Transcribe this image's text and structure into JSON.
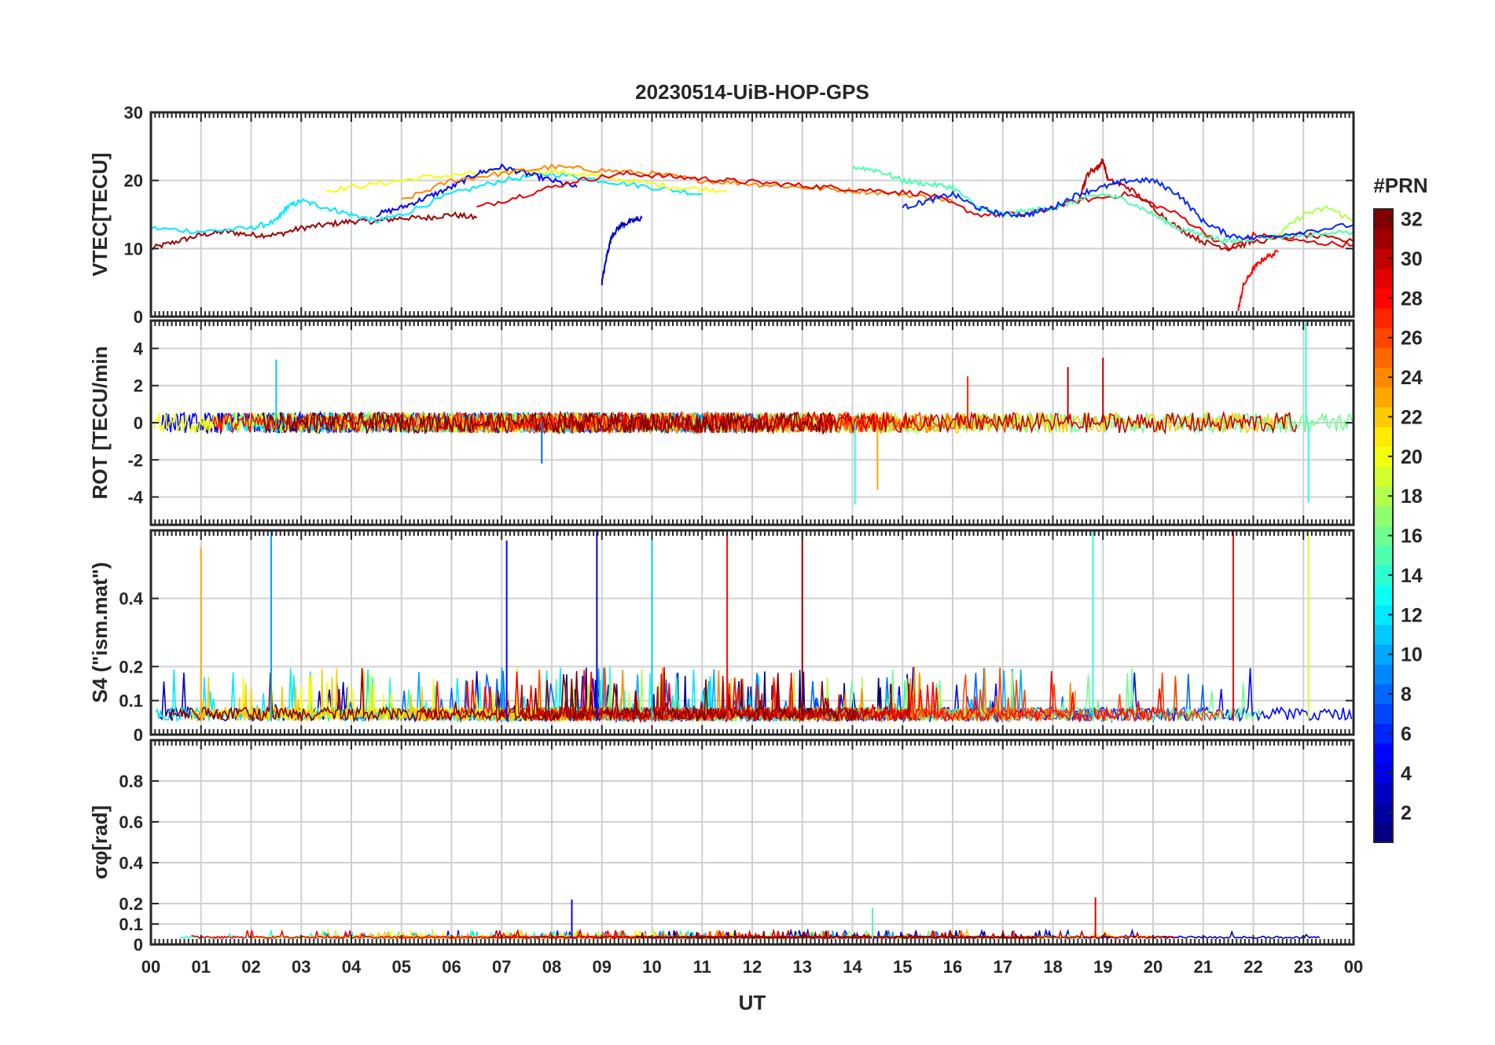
{
  "figure": {
    "title": "20230514-UiB-HOP-GPS",
    "xlabel": "UT",
    "x_ticks": [
      "00",
      "01",
      "02",
      "03",
      "04",
      "05",
      "06",
      "07",
      "08",
      "09",
      "10",
      "11",
      "12",
      "13",
      "14",
      "15",
      "16",
      "17",
      "18",
      "19",
      "20",
      "21",
      "22",
      "23",
      "00"
    ]
  },
  "colorbar": {
    "title": "#PRN",
    "range": [
      1,
      32
    ],
    "tick_labels": [
      "2",
      "4",
      "6",
      "8",
      "10",
      "12",
      "14",
      "16",
      "18",
      "20",
      "22",
      "24",
      "26",
      "28",
      "30",
      "32"
    ],
    "colormap": "jet"
  },
  "chart_data": [
    {
      "type": "line",
      "panel": "vtec",
      "ylabel": "VTEC[TECU]",
      "ylim": [
        0,
        30
      ],
      "y_ticks": [
        "0",
        "10",
        "20",
        "30"
      ],
      "xlim_hours": [
        0,
        24
      ],
      "grid": true,
      "series_description_from_image": "multiple PRN tracks, colored by PRN",
      "series": [
        {
          "prn": 31,
          "x": [
            0,
            0.5,
            1,
            1.5,
            2,
            2.5,
            3,
            3.5,
            4,
            4.5,
            5,
            5.5,
            6,
            6.5
          ],
          "y": [
            10,
            11,
            12,
            12.5,
            12,
            12,
            13,
            13.5,
            14,
            14,
            14.5,
            14.5,
            15,
            14.5
          ]
        },
        {
          "prn": 12,
          "x": [
            0,
            1,
            2,
            2.5,
            2.7,
            3,
            3.5,
            4,
            4.5,
            5,
            6,
            7,
            8,
            9,
            10,
            11
          ],
          "y": [
            13,
            12.5,
            13,
            14,
            16,
            17,
            16,
            15,
            14,
            15,
            18,
            20,
            21,
            20,
            19,
            18
          ]
        },
        {
          "prn": 20,
          "x": [
            3.5,
            4.5,
            5.5,
            6.5,
            7.5,
            8.5,
            9.5,
            10.5,
            11.5
          ],
          "y": [
            18.5,
            19.5,
            20.5,
            21,
            21.5,
            21,
            20,
            19,
            18.5
          ]
        },
        {
          "prn": 5,
          "x": [
            4.5,
            5,
            5.5,
            6,
            6.5,
            7,
            7.5,
            8,
            8.5
          ],
          "y": [
            15,
            16,
            17.5,
            19,
            21,
            22,
            21,
            20,
            19
          ]
        },
        {
          "prn": 24,
          "x": [
            5,
            6,
            7,
            8,
            9,
            10,
            11,
            12,
            13,
            14,
            15,
            16
          ],
          "y": [
            17,
            20,
            21,
            22,
            21.5,
            21,
            20,
            19.5,
            19,
            18.5,
            18,
            17
          ]
        },
        {
          "prn": 29,
          "x": [
            6.5,
            7.5,
            8.5,
            9.5,
            10.5,
            11.5,
            12.5,
            13.5,
            14.5,
            15.5,
            16.5,
            17.5,
            18.5,
            19.5,
            20.5,
            21.5,
            22,
            23,
            24
          ],
          "y": [
            16,
            18,
            20,
            21,
            20.5,
            20,
            19.5,
            19,
            18.5,
            18,
            15,
            15,
            17,
            18,
            15,
            10,
            12,
            11,
            10.5
          ]
        },
        {
          "prn": 3,
          "x": [
            9.0,
            9.1,
            9.2,
            9.4,
            9.6,
            9.8
          ],
          "y": [
            5,
            9,
            12,
            13.5,
            14,
            14.5
          ]
        },
        {
          "prn": 28,
          "x": [
            21.7,
            21.8,
            22,
            22.2,
            22.5
          ],
          "y": [
            1,
            4.5,
            7,
            8.5,
            9.5
          ]
        },
        {
          "prn": 30,
          "x": [
            18.5,
            18.7,
            18.9,
            19.0,
            19.1,
            19.5,
            20,
            20.5,
            21,
            21.5,
            22,
            23,
            24
          ],
          "y": [
            17,
            21,
            22,
            23,
            20,
            19,
            16,
            13,
            11,
            10,
            11,
            12,
            11
          ]
        },
        {
          "prn": 15,
          "x": [
            14,
            14.5,
            15,
            15.5,
            16,
            16.5,
            17,
            17.5,
            18,
            18.5,
            19,
            19.5,
            20,
            20.5,
            21,
            21.5,
            22,
            23,
            24
          ],
          "y": [
            22,
            21.5,
            20,
            19.5,
            19,
            16,
            15,
            15.5,
            16,
            17,
            18,
            17,
            15,
            13,
            12,
            11,
            11.5,
            12,
            12.5
          ]
        },
        {
          "prn": 6,
          "x": [
            15,
            15.5,
            16,
            16.5,
            17,
            17.5,
            18,
            18.5,
            19,
            19.5,
            20,
            20.5,
            21,
            21.5,
            22,
            23,
            24
          ],
          "y": [
            16,
            17,
            18,
            16,
            15,
            15,
            16,
            18,
            19,
            20,
            20,
            18,
            14,
            12,
            11.5,
            12.5,
            13.5
          ]
        },
        {
          "prn": 18,
          "x": [
            22.5,
            23,
            23.5,
            24
          ],
          "y": [
            12,
            15,
            16,
            14
          ]
        }
      ]
    },
    {
      "type": "line",
      "panel": "rot",
      "ylabel": "ROT [TECU/min",
      "ylim": [
        -5.5,
        5.5
      ],
      "y_ticks": [
        "-4",
        "-2",
        "0",
        "2",
        "4"
      ],
      "xlim_hours": [
        0,
        24
      ],
      "grid": true,
      "notable_values": [
        {
          "prn": 11,
          "x": 2.5,
          "y": 3.4
        },
        {
          "prn": 8,
          "x": 7.8,
          "y": -2.2
        },
        {
          "prn": 14,
          "x": 14.05,
          "y": -4.4
        },
        {
          "prn": 23,
          "x": 14.5,
          "y": -3.6
        },
        {
          "prn": 27,
          "x": 16.3,
          "y": 2.5
        },
        {
          "prn": 30,
          "x": 18.3,
          "y": 3.0
        },
        {
          "prn": 30,
          "x": 19.0,
          "y": 3.5
        },
        {
          "prn": 14,
          "x": 23.05,
          "y": 5.4
        },
        {
          "prn": 14,
          "x": 23.1,
          "y": -4.3
        }
      ]
    },
    {
      "type": "line",
      "panel": "s4",
      "ylabel": "S4 (\"ism.mat\")",
      "ylim": [
        0,
        0.6
      ],
      "y_ticks": [
        "0",
        "0.1",
        "0.2",
        "0.4"
      ],
      "xlim_hours": [
        0,
        24
      ],
      "grid": true,
      "notable_values": [
        {
          "prn": 10,
          "x": 2.4,
          "y": 0.6
        },
        {
          "prn": 23,
          "x": 1.0,
          "y": 0.55
        },
        {
          "prn": 5,
          "x": 7.1,
          "y": 0.57
        },
        {
          "prn": 4,
          "x": 8.9,
          "y": 0.6
        },
        {
          "prn": 11,
          "x": 10.0,
          "y": 0.6
        },
        {
          "prn": 28,
          "x": 11.5,
          "y": 0.6
        },
        {
          "prn": 31,
          "x": 13.0,
          "y": 0.6
        },
        {
          "prn": 14,
          "x": 18.8,
          "y": 0.6
        },
        {
          "prn": 28,
          "x": 21.6,
          "y": 0.6
        },
        {
          "prn": 19,
          "x": 23.1,
          "y": 0.6
        }
      ]
    },
    {
      "type": "line",
      "panel": "sigma_phi",
      "ylabel": "σφ[rad]",
      "ylim": [
        0,
        1.0
      ],
      "y_ticks": [
        "0",
        "0.1",
        "0.2",
        "0.4",
        "0.6",
        "0.8"
      ],
      "xlim_hours": [
        0,
        24
      ],
      "grid": true,
      "notable_values": [
        {
          "prn": 5,
          "x": 8.4,
          "y": 0.22
        },
        {
          "prn": 29,
          "x": 18.85,
          "y": 0.23
        },
        {
          "prn": 15,
          "x": 14.4,
          "y": 0.18
        }
      ]
    }
  ]
}
